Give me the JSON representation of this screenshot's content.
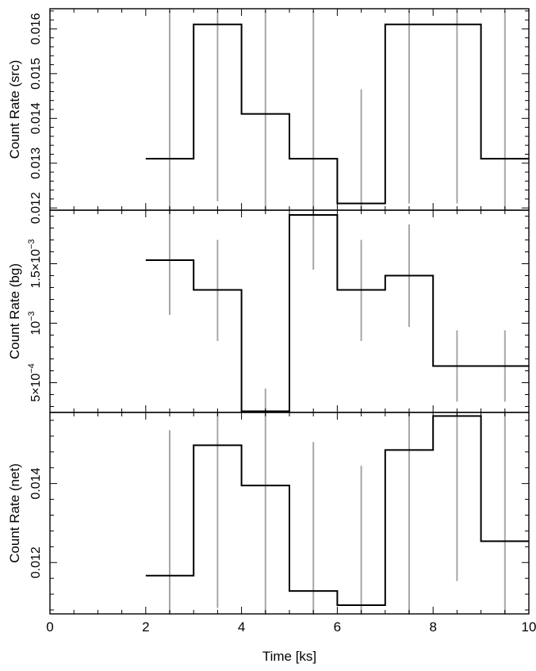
{
  "chart_data": {
    "type": "line",
    "style": "step",
    "shared_x": {
      "label": "Time [ks]",
      "lim": [
        0,
        10
      ],
      "ticks": [
        0,
        2,
        4,
        6,
        8,
        10
      ],
      "tick_labels": [
        "0",
        "2",
        "4",
        "6",
        "8",
        "10"
      ]
    },
    "colors": {
      "step": "#000000",
      "error_bar": "#a6a6a6",
      "frame": "#000000"
    },
    "panels": [
      {
        "name": "src",
        "ylabel": "Count Rate (src)",
        "ylim": [
          0.01195,
          0.01645
        ],
        "y_ticks": [
          0.012,
          0.013,
          0.014,
          0.015,
          0.016
        ],
        "y_tick_labels": [
          "0.012",
          "0.013",
          "0.014",
          "0.015",
          "0.016"
        ],
        "bin_edges": [
          2,
          3,
          4,
          5,
          6,
          7,
          8,
          9,
          10
        ],
        "values": [
          0.0131,
          0.0161,
          0.0141,
          0.0131,
          0.0121,
          0.0161,
          0.0161,
          0.0131
        ],
        "error_bars": [
          {
            "x": 2.5,
            "low": 0.0111,
            "high": 0.0164
          },
          {
            "x": 3.5,
            "low": 0.01215,
            "high": 0.0164
          },
          {
            "x": 4.5,
            "low": 0.0111,
            "high": 0.0164
          },
          {
            "x": 5.5,
            "low": 0.0111,
            "high": 0.0164
          },
          {
            "x": 6.5,
            "low": 0.0111,
            "high": 0.01465
          },
          {
            "x": 7.5,
            "low": 0.0121,
            "high": 0.0164
          },
          {
            "x": 8.5,
            "low": 0.0121,
            "high": 0.0164
          },
          {
            "x": 9.5,
            "low": 0.0111,
            "high": 0.0164
          }
        ]
      },
      {
        "name": "bg",
        "ylabel": "Count Rate (bg)",
        "ylim": [
          0.00025,
          0.00195
        ],
        "y_ticks": [
          0.0005,
          0.001,
          0.0015
        ],
        "y_tick_labels": [
          {
            "base": "5×10",
            "exp": "−4"
          },
          {
            "base": "10",
            "exp": "−3"
          },
          {
            "base": "1.5×10",
            "exp": "−3"
          }
        ],
        "bin_edges": [
          2,
          3,
          4,
          5,
          6,
          7,
          8,
          9,
          10
        ],
        "values": [
          0.00153,
          0.00128,
          0.00026,
          0.00191,
          0.00128,
          0.0014,
          0.00064,
          0.00064
        ],
        "error_bars": [
          {
            "x": 2.5,
            "low": 0.00107,
            "high": 0.002
          },
          {
            "x": 3.5,
            "low": 0.00085,
            "high": 0.0017
          },
          {
            "x": 4.5,
            "low": 0.0001,
            "high": 0.00045
          },
          {
            "x": 5.5,
            "low": 0.00145,
            "high": 0.002
          },
          {
            "x": 6.5,
            "low": 0.00085,
            "high": 0.0017
          },
          {
            "x": 7.5,
            "low": 0.00097,
            "high": 0.00183
          },
          {
            "x": 8.5,
            "low": 0.00034,
            "high": 0.00094
          },
          {
            "x": 9.5,
            "low": 0.00034,
            "high": 0.00094
          }
        ]
      },
      {
        "name": "net",
        "ylabel": "Count Rate (net)",
        "ylim": [
          0.0107,
          0.0158
        ],
        "y_ticks": [
          0.012,
          0.014
        ],
        "y_tick_labels": [
          "0.012",
          "0.014"
        ],
        "bin_edges": [
          2,
          3,
          4,
          5,
          6,
          7,
          8,
          9,
          10
        ],
        "values": [
          0.01167,
          0.01497,
          0.01395,
          0.01128,
          0.01092,
          0.01485,
          0.01571,
          0.01254
        ],
        "error_bars": [
          {
            "x": 2.5,
            "low": 0.0105,
            "high": 0.01535
          },
          {
            "x": 3.5,
            "low": 0.01085,
            "high": 0.0159
          },
          {
            "x": 4.5,
            "low": 0.0105,
            "high": 0.0159
          },
          {
            "x": 5.5,
            "low": 0.0105,
            "high": 0.01505
          },
          {
            "x": 6.5,
            "low": 0.0105,
            "high": 0.01445
          },
          {
            "x": 7.5,
            "low": 0.0105,
            "high": 0.0159
          },
          {
            "x": 8.5,
            "low": 0.01153,
            "high": 0.0159
          },
          {
            "x": 9.5,
            "low": 0.0105,
            "high": 0.0159
          }
        ]
      }
    ]
  }
}
